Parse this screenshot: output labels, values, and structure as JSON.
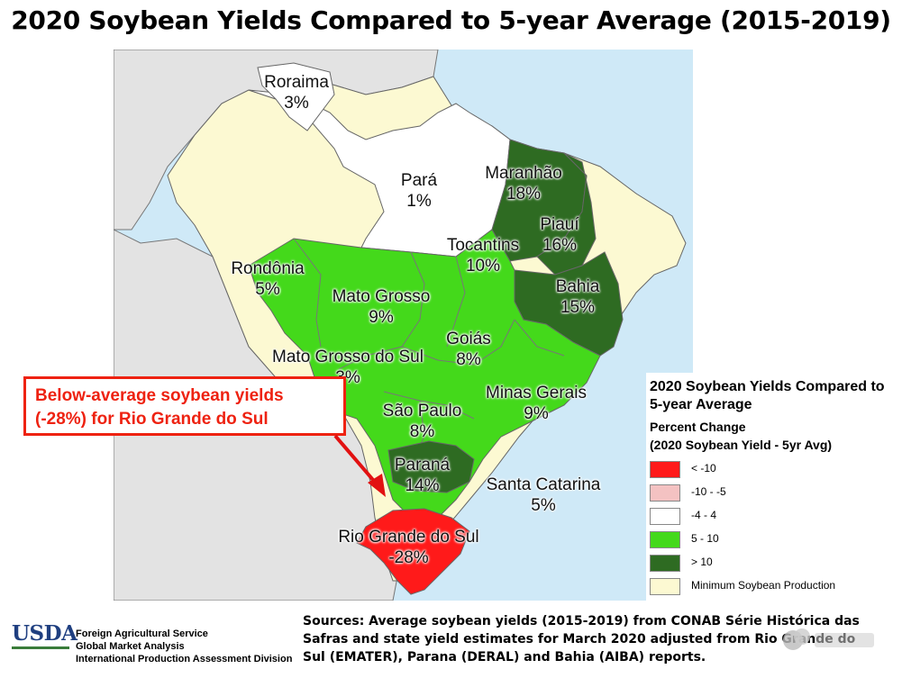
{
  "title": "2020 Soybean Yields Compared to 5-year Average (2015-2019)",
  "states": [
    {
      "key": "roraima",
      "name": "Roraima",
      "pct": "3%"
    },
    {
      "key": "para",
      "name": "Pará",
      "pct": "1%"
    },
    {
      "key": "maranhao",
      "name": "Maranhão",
      "pct": "18%"
    },
    {
      "key": "piaui",
      "name": "Piauí",
      "pct": "16%"
    },
    {
      "key": "tocantins",
      "name": "Tocantins",
      "pct": "10%"
    },
    {
      "key": "rondonia",
      "name": "Rondônia",
      "pct": "5%"
    },
    {
      "key": "mato_grosso",
      "name": "Mato Grosso",
      "pct": "9%"
    },
    {
      "key": "bahia",
      "name": "Bahia",
      "pct": "15%"
    },
    {
      "key": "goias",
      "name": "Goiás",
      "pct": "8%"
    },
    {
      "key": "mato_grosso_do_sul",
      "name": "Mato Grosso do Sul",
      "pct": "3%"
    },
    {
      "key": "minas_gerais",
      "name": "Minas Gerais",
      "pct": "9%"
    },
    {
      "key": "sao_paulo",
      "name": "São Paulo",
      "pct": "8%"
    },
    {
      "key": "parana",
      "name": "Paraná",
      "pct": "14%"
    },
    {
      "key": "santa_catarina",
      "name": "Santa Catarina",
      "pct": "5%"
    },
    {
      "key": "rio_grande_do_sul",
      "name": "Rio Grande do Sul",
      "pct": "-28%"
    }
  ],
  "legend": {
    "title": "2020 Soybean Yields Compared to 5-year Average",
    "subtitle_line1": "Percent Change",
    "subtitle_line2": "(2020 Soybean Yield - 5yr Avg)",
    "items": [
      {
        "label": "< -10",
        "color": "#ff1a1a"
      },
      {
        "label": "-10 - -5",
        "color": "#f4c2c2"
      },
      {
        "label": "-4 - 4",
        "color": "#ffffff"
      },
      {
        "label": "5 - 10",
        "color": "#44d91b"
      },
      {
        "label": "> 10",
        "color": "#2e6b22"
      },
      {
        "label": "Minimum Soybean Production",
        "color": "#fcf9d2"
      }
    ]
  },
  "callout": {
    "text": "Below-average soybean yields\n(-28%) for Rio Grande do Sul"
  },
  "footer": {
    "logo": "USDA",
    "agency_lines": [
      "Foreign Agricultural Service",
      "Global Market Analysis",
      "International Production Assessment Division"
    ],
    "sources": "Sources: Average soybean yields (2015-2019) from CONAB Série Histórica das Safras and state yield estimates for March 2020 adjusted from Rio Grande do Sul (EMATER), Parana (DERAL) and Bahia (AIBA) reports."
  },
  "colors": {
    "ocean": "#cfe9f7",
    "neighbor_land": "#e3e3e3",
    "red": "#ff1a1a",
    "green": "#44d91b",
    "dark_green": "#2e6b22",
    "cream": "#fcf9d2",
    "white": "#ffffff",
    "callout_red": "#e21111"
  }
}
